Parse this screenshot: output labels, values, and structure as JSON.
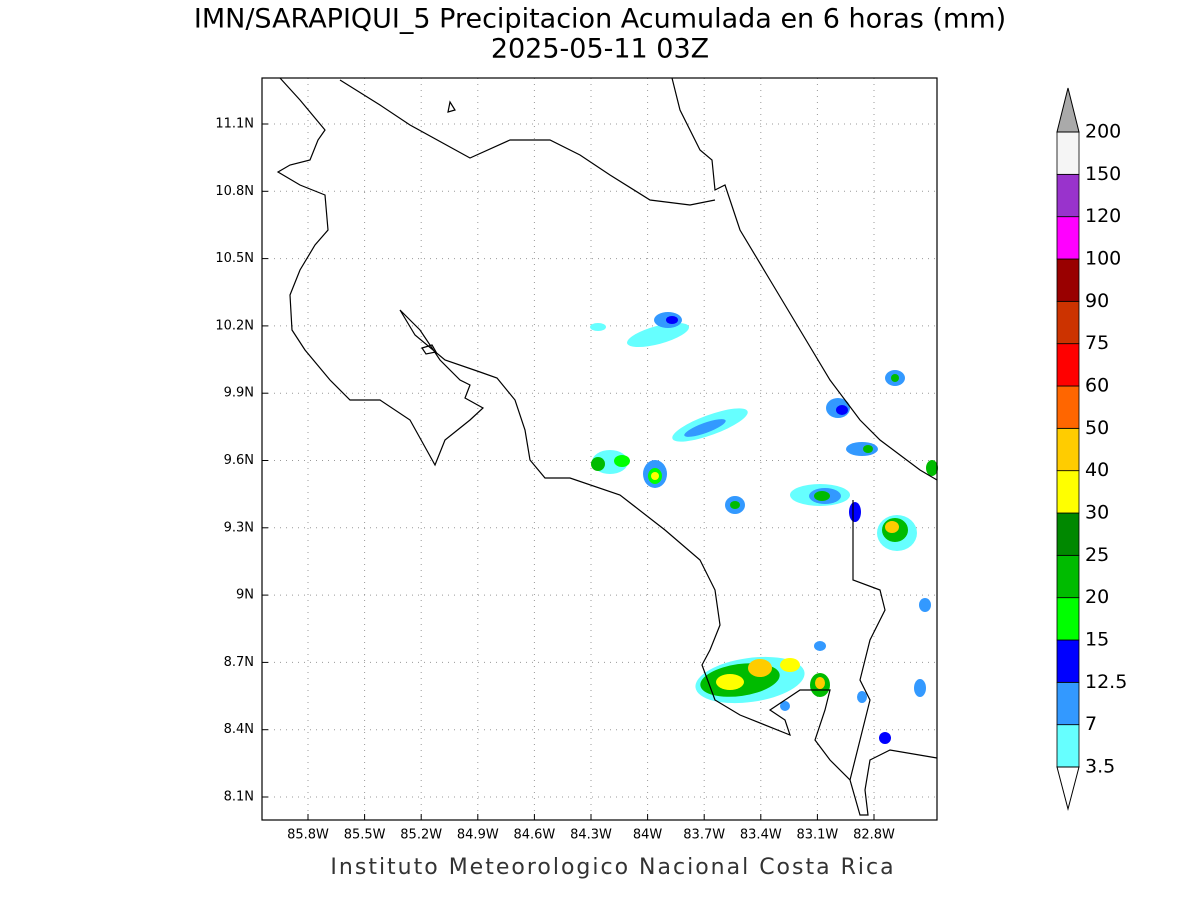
{
  "title": "IMN/SARAPIQUI_5 Precipitacion Acumulada en 6 horas (mm)",
  "subtitle": "2025-05-11 03Z",
  "map": {
    "lat_ticks": [
      "11.1N",
      "10.8N",
      "10.5N",
      "10.2N",
      "9.9N",
      "9.6N",
      "9.3N",
      "9N",
      "8.7N",
      "8.4N",
      "8.1N"
    ],
    "lon_ticks": [
      "85.8W",
      "85.5W",
      "85.2W",
      "84.9W",
      "84.6W",
      "84.3W",
      "84W",
      "83.7W",
      "83.4W",
      "83.1W",
      "82.8W"
    ]
  },
  "colorbar": {
    "levels": [
      3.5,
      7,
      12.5,
      15,
      20,
      25,
      30,
      40,
      50,
      60,
      75,
      90,
      100,
      120,
      150,
      200
    ],
    "colors": [
      "#66ffff",
      "#3399ff",
      "#0000ff",
      "#00ff00",
      "#00bb00",
      "#008800",
      "#ffff00",
      "#ffcc00",
      "#ff6600",
      "#ff0000",
      "#cc3300",
      "#990000",
      "#ff00ff",
      "#9933cc",
      "#f5f5f5"
    ],
    "under_color": "#ffffff",
    "over_color": "#aaaaaa"
  },
  "footer": "Instituto Meteorologico Nacional Costa Rica"
}
